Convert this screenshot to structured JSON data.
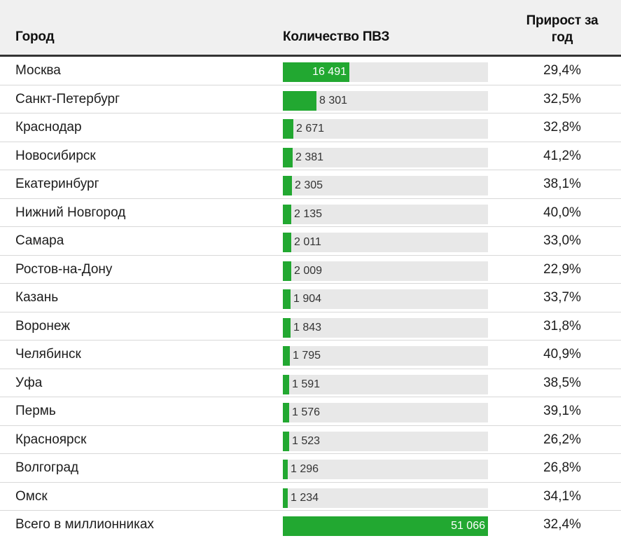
{
  "chart_data": {
    "type": "table",
    "columns": [
      "Город",
      "Количество ПВЗ",
      "Прирост за год"
    ],
    "header_growth_lines": [
      "Прирост за",
      "год"
    ],
    "bar_max": 16491,
    "colors": {
      "bar": "#22a831",
      "track": "#e8e8e8",
      "header_bg": "#f0f0f0"
    },
    "rows": [
      {
        "city": "Москва",
        "count": 16491,
        "count_label": "16 491",
        "growth": "29,4%"
      },
      {
        "city": "Санкт-Петербург",
        "count": 8301,
        "count_label": "8 301",
        "growth": "32,5%"
      },
      {
        "city": "Краснодар",
        "count": 2671,
        "count_label": "2 671",
        "growth": "32,8%"
      },
      {
        "city": "Новосибирск",
        "count": 2381,
        "count_label": "2 381",
        "growth": "41,2%"
      },
      {
        "city": "Екатеринбург",
        "count": 2305,
        "count_label": "2 305",
        "growth": "38,1%"
      },
      {
        "city": "Нижний Новгород",
        "count": 2135,
        "count_label": "2 135",
        "growth": "40,0%"
      },
      {
        "city": "Самара",
        "count": 2011,
        "count_label": "2 011",
        "growth": "33,0%"
      },
      {
        "city": "Ростов-на-Дону",
        "count": 2009,
        "count_label": "2 009",
        "growth": "22,9%"
      },
      {
        "city": "Казань",
        "count": 1904,
        "count_label": "1 904",
        "growth": "33,7%"
      },
      {
        "city": "Воронеж",
        "count": 1843,
        "count_label": "1 843",
        "growth": "31,8%"
      },
      {
        "city": "Челябинск",
        "count": 1795,
        "count_label": "1 795",
        "growth": "40,9%"
      },
      {
        "city": "Уфа",
        "count": 1591,
        "count_label": "1 591",
        "growth": "38,5%"
      },
      {
        "city": "Пермь",
        "count": 1576,
        "count_label": "1 576",
        "growth": "39,1%"
      },
      {
        "city": "Красноярск",
        "count": 1523,
        "count_label": "1 523",
        "growth": "26,2%"
      },
      {
        "city": "Волгоград",
        "count": 1296,
        "count_label": "1 296",
        "growth": "26,8%"
      },
      {
        "city": "Омск",
        "count": 1234,
        "count_label": "1 234",
        "growth": "34,1%"
      },
      {
        "city": "Всего в миллионниках",
        "count": 51066,
        "count_label": "51 066",
        "growth": "32,4%",
        "total": true
      }
    ]
  }
}
